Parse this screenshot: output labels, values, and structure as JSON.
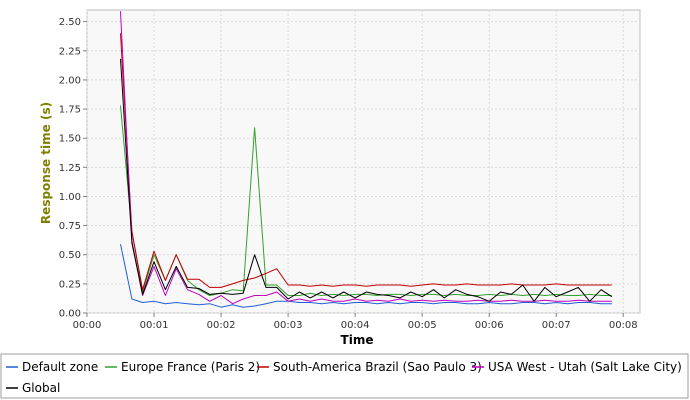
{
  "chart_data": {
    "type": "line",
    "title": "",
    "xlabel": "Time",
    "ylabel": "Response time (s)",
    "xlim": [
      0,
      8.25
    ],
    "ylim": [
      0,
      2.6
    ],
    "x_ticks": [
      0,
      1,
      2,
      3,
      4,
      5,
      6,
      7,
      8
    ],
    "x_tick_labels": [
      "00:00",
      "00:01",
      "00:02",
      "00:03",
      "00:04",
      "00:05",
      "00:06",
      "00:07",
      "00:08"
    ],
    "y_ticks": [
      0,
      0.25,
      0.5,
      0.75,
      1.0,
      1.25,
      1.5,
      1.75,
      2.0,
      2.25,
      2.5
    ],
    "y_tick_labels": [
      "0.00",
      "0.25",
      "0.50",
      "0.75",
      "1.00",
      "1.25",
      "1.50",
      "1.75",
      "2.00",
      "2.25",
      "2.50"
    ],
    "grid": true,
    "legend_position": "bottom",
    "series": [
      {
        "name": "Default zone",
        "color": "#1f5fd6",
        "x": [
          0.5,
          0.67,
          0.83,
          1.0,
          1.17,
          1.33,
          1.5,
          1.67,
          1.83,
          2.0,
          2.17,
          2.33,
          2.5,
          2.67,
          2.83,
          3.0,
          3.17,
          3.33,
          3.5,
          3.67,
          3.83,
          4.0,
          4.17,
          4.33,
          4.5,
          4.67,
          4.83,
          5.0,
          5.17,
          5.33,
          5.5,
          5.67,
          5.83,
          6.0,
          6.17,
          6.33,
          6.5,
          6.67,
          6.83,
          7.0,
          7.17,
          7.33,
          7.5,
          7.67,
          7.83
        ],
        "values": [
          0.59,
          0.12,
          0.09,
          0.1,
          0.08,
          0.09,
          0.08,
          0.07,
          0.08,
          0.05,
          0.07,
          0.05,
          0.06,
          0.08,
          0.1,
          0.1,
          0.09,
          0.09,
          0.08,
          0.09,
          0.08,
          0.09,
          0.09,
          0.08,
          0.09,
          0.08,
          0.09,
          0.09,
          0.08,
          0.09,
          0.09,
          0.08,
          0.08,
          0.09,
          0.08,
          0.08,
          0.09,
          0.09,
          0.08,
          0.09,
          0.08,
          0.09,
          0.09,
          0.08,
          0.08
        ]
      },
      {
        "name": "Europe France (Paris 2)",
        "color": "#33a02c",
        "x": [
          0.5,
          0.67,
          0.83,
          1.0,
          1.17,
          1.33,
          1.5,
          1.67,
          1.83,
          2.0,
          2.17,
          2.33,
          2.5,
          2.67,
          2.83,
          3.0,
          3.17,
          3.33,
          3.5,
          3.67,
          3.83,
          4.0,
          4.17,
          4.33,
          4.5,
          4.67,
          4.83,
          5.0,
          5.17,
          5.33,
          5.5,
          5.67,
          5.83,
          6.0,
          6.17,
          6.33,
          6.5,
          6.67,
          6.83,
          7.0,
          7.17,
          7.33,
          7.5,
          7.67,
          7.83
        ],
        "values": [
          1.78,
          0.7,
          0.18,
          0.5,
          0.28,
          0.5,
          0.28,
          0.2,
          0.15,
          0.17,
          0.2,
          0.19,
          1.59,
          0.24,
          0.24,
          0.15,
          0.15,
          0.17,
          0.15,
          0.16,
          0.15,
          0.16,
          0.16,
          0.15,
          0.16,
          0.16,
          0.15,
          0.16,
          0.16,
          0.15,
          0.16,
          0.15,
          0.15,
          0.16,
          0.15,
          0.16,
          0.15,
          0.16,
          0.15,
          0.16,
          0.15,
          0.15,
          0.16,
          0.15,
          0.15
        ]
      },
      {
        "name": "South-America Brazil (Sao Paulo 3)",
        "color": "#c00000",
        "x": [
          0.5,
          0.67,
          0.83,
          1.0,
          1.17,
          1.33,
          1.5,
          1.67,
          1.83,
          2.0,
          2.17,
          2.33,
          2.5,
          2.67,
          2.83,
          3.0,
          3.17,
          3.33,
          3.5,
          3.67,
          3.83,
          4.0,
          4.17,
          4.33,
          4.5,
          4.67,
          4.83,
          5.0,
          5.17,
          5.33,
          5.5,
          5.67,
          5.83,
          6.0,
          6.17,
          6.33,
          6.5,
          6.67,
          6.83,
          7.0,
          7.17,
          7.33,
          7.5,
          7.67,
          7.83
        ],
        "values": [
          2.4,
          0.7,
          0.2,
          0.53,
          0.28,
          0.5,
          0.29,
          0.29,
          0.22,
          0.22,
          0.25,
          0.28,
          0.3,
          0.34,
          0.38,
          0.24,
          0.24,
          0.23,
          0.24,
          0.23,
          0.24,
          0.24,
          0.23,
          0.24,
          0.24,
          0.24,
          0.23,
          0.24,
          0.25,
          0.24,
          0.24,
          0.25,
          0.24,
          0.24,
          0.24,
          0.25,
          0.24,
          0.24,
          0.24,
          0.25,
          0.24,
          0.24,
          0.24,
          0.24,
          0.24
        ]
      },
      {
        "name": "USA West - Utah (Salt Lake City)",
        "color": "#c000c0",
        "x": [
          0.5,
          0.67,
          0.83,
          1.0,
          1.17,
          1.33,
          1.5,
          1.67,
          1.83,
          2.0,
          2.17,
          2.33,
          2.5,
          2.67,
          2.83,
          3.0,
          3.17,
          3.33,
          3.5,
          3.67,
          3.83,
          4.0,
          4.17,
          4.33,
          4.5,
          4.67,
          4.83,
          5.0,
          5.17,
          5.33,
          5.5,
          5.67,
          5.83,
          6.0,
          6.17,
          6.33,
          6.5,
          6.67,
          6.83,
          7.0,
          7.17,
          7.33,
          7.5,
          7.67,
          7.83
        ],
        "values": [
          2.59,
          0.62,
          0.15,
          0.4,
          0.15,
          0.38,
          0.2,
          0.16,
          0.1,
          0.15,
          0.08,
          0.12,
          0.15,
          0.15,
          0.18,
          0.1,
          0.12,
          0.1,
          0.12,
          0.1,
          0.1,
          0.12,
          0.1,
          0.11,
          0.1,
          0.12,
          0.1,
          0.11,
          0.1,
          0.11,
          0.1,
          0.1,
          0.11,
          0.1,
          0.1,
          0.11,
          0.1,
          0.1,
          0.11,
          0.1,
          0.1,
          0.11,
          0.1,
          0.1,
          0.1
        ]
      },
      {
        "name": "Global",
        "color": "#000000",
        "x": [
          0.5,
          0.67,
          0.83,
          1.0,
          1.17,
          1.33,
          1.5,
          1.67,
          1.83,
          2.0,
          2.17,
          2.33,
          2.5,
          2.67,
          2.83,
          3.0,
          3.17,
          3.33,
          3.5,
          3.67,
          3.83,
          4.0,
          4.17,
          4.33,
          4.5,
          4.67,
          4.83,
          5.0,
          5.17,
          5.33,
          5.5,
          5.67,
          5.83,
          6.0,
          6.17,
          6.33,
          6.5,
          6.67,
          6.83,
          7.0,
          7.17,
          7.33,
          7.5,
          7.67,
          7.83
        ],
        "values": [
          2.18,
          0.6,
          0.16,
          0.44,
          0.2,
          0.4,
          0.22,
          0.21,
          0.16,
          0.17,
          0.16,
          0.17,
          0.5,
          0.22,
          0.22,
          0.12,
          0.18,
          0.13,
          0.18,
          0.13,
          0.18,
          0.13,
          0.18,
          0.16,
          0.15,
          0.13,
          0.18,
          0.14,
          0.2,
          0.13,
          0.2,
          0.16,
          0.14,
          0.1,
          0.18,
          0.16,
          0.24,
          0.1,
          0.22,
          0.14,
          0.18,
          0.22,
          0.1,
          0.2,
          0.14
        ]
      }
    ]
  }
}
